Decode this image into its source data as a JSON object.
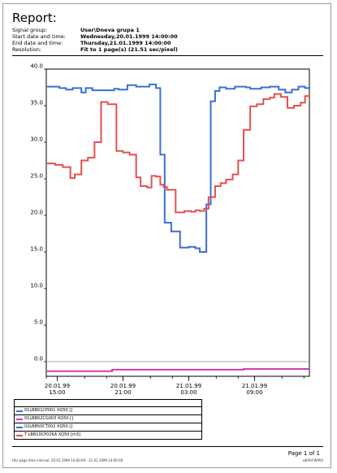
{
  "report": {
    "title": "Report:",
    "meta": [
      {
        "label": "Signal group:",
        "value": "User\\Dneva grupa 1"
      },
      {
        "label": "Start date and time:",
        "value": "Wednesday,20.01.1999 14:00:00"
      },
      {
        "label": "End date and time:",
        "value": "Thursday,21.01.1999 14:00:00"
      },
      {
        "label": "Resolution:",
        "value": "Fit to 1 page(s) (21.51 sec/pixel)"
      }
    ],
    "page_label": "Page 1 of 1",
    "footer_left": "this page time interval:    20.01.1999  14:00:00 - 21.01.1999  14:00:00",
    "footer_right": "sd0/hCWP04"
  },
  "legend": {
    "items": [
      {
        "label": "01LBB01CP001 XQ50 []",
        "color": "#3b6fd6"
      },
      {
        "label": "01LBB02CG003 XQ50 []",
        "color": "#d63bb0"
      },
      {
        "label": "02LBB50CT002 XQ50 []",
        "color": "#3b6fd6"
      },
      {
        "label": "T LBB10CP026A XQ50 [m3]",
        "color": "#e35050"
      }
    ]
  },
  "chart_data": {
    "type": "line",
    "ylim": [
      -2,
      40
    ],
    "yticks": [
      0,
      5,
      10,
      15,
      20,
      25,
      30,
      35,
      40
    ],
    "ytick_labels": [
      "0.0",
      "5.0",
      "10.0",
      "15.0",
      "20.0",
      "25.0",
      "30.0",
      "35.0",
      "40.0"
    ],
    "xlim": [
      0,
      24
    ],
    "xticks": [
      1,
      7,
      13,
      19
    ],
    "xtick_labels": [
      [
        "20.01.99",
        "15:00"
      ],
      [
        "20.01.99",
        "21:00"
      ],
      [
        "21.01.99",
        "03:00"
      ],
      [
        "21.01.99",
        "09:00"
      ]
    ],
    "minor_xticks": [
      0,
      1,
      3.5,
      5.5,
      7,
      9.5,
      11.5,
      13,
      15.5,
      17.5,
      19,
      21.5,
      23.5
    ],
    "series": [
      {
        "color": "#3b6fd6",
        "x": [
          0,
          1.2,
          1.8,
          2.4,
          3.2,
          3.6,
          4.2,
          6.2,
          6.6,
          7.4,
          8.2,
          9.4,
          10.0,
          10.4,
          10.8,
          11.4,
          12.2,
          13.0,
          13.6,
          14.0,
          14.6,
          15.0,
          15.4,
          15.8,
          16.4,
          17.2,
          18.2,
          18.6,
          19.6,
          20.4,
          21.2,
          21.8,
          22.4,
          23.0,
          23.6,
          24.0
        ],
        "y": [
          37.6,
          37.4,
          37.2,
          37.4,
          36.8,
          37.4,
          37.1,
          37.3,
          37.2,
          37.8,
          37.6,
          37.9,
          37.4,
          28.3,
          19.0,
          17.8,
          15.6,
          15.7,
          15.5,
          15.0,
          21.5,
          35.6,
          37.0,
          37.5,
          37.3,
          37.6,
          37.5,
          37.3,
          37.5,
          37.6,
          37.2,
          36.8,
          37.2,
          37.6,
          37.4,
          37.6
        ]
      },
      {
        "color": "#e35050",
        "x": [
          0,
          0.8,
          1.5,
          2.2,
          2.6,
          3.2,
          3.8,
          4.4,
          5.0,
          5.6,
          6.4,
          7.0,
          7.6,
          8.2,
          8.6,
          9.2,
          9.6,
          10.0,
          10.4,
          10.7,
          11.0,
          11.8,
          12.6,
          13.2,
          13.6,
          14.0,
          14.4,
          14.8,
          15.4,
          15.9,
          16.4,
          17.0,
          17.5,
          18.0,
          18.6,
          19.2,
          19.8,
          20.4,
          20.8,
          21.4,
          22.0,
          22.6,
          23.2,
          23.6,
          24.0
        ],
        "y": [
          27.1,
          26.9,
          26.6,
          25.1,
          25.6,
          27.5,
          27.9,
          30.0,
          35.5,
          35.2,
          28.8,
          28.6,
          28.3,
          25.2,
          24.0,
          23.8,
          25.4,
          25.3,
          24.2,
          23.9,
          23.5,
          20.4,
          20.6,
          20.5,
          20.7,
          20.6,
          20.9,
          22.5,
          24.0,
          24.4,
          24.9,
          25.6,
          27.5,
          31.7,
          34.9,
          35.2,
          35.9,
          36.1,
          36.6,
          36.2,
          34.7,
          35.0,
          35.4,
          36.3,
          36.7
        ]
      },
      {
        "color": "#d63bb0",
        "x": [
          0,
          6.0,
          18.0,
          24.0
        ],
        "y": [
          -1.3,
          -1.1,
          -1.0,
          -1.0
        ]
      }
    ]
  }
}
